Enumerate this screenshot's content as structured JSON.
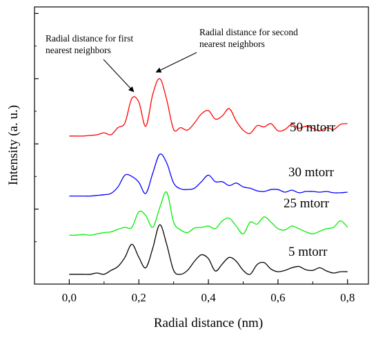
{
  "chart_data": {
    "type": "line",
    "xlabel": "Radial distance (nm)",
    "ylabel": "Intensity (a. u.)",
    "xlim": [
      -0.1,
      0.86
    ],
    "ylim": [
      -0.15,
      4.1
    ],
    "x_ticks": [
      0.0,
      0.2,
      0.4,
      0.6,
      0.8
    ],
    "x_tick_labels": [
      "0,0",
      "0,2",
      "0,4",
      "0,6",
      "0,8"
    ],
    "y_tick_labels_shown": false,
    "grid": false,
    "annotations": [
      {
        "text_lines": [
          "Radial distance for first",
          "nearest neighbors"
        ],
        "arrow_to": [
          0.185,
          2.8
        ]
      },
      {
        "text_lines": [
          "Radial distance for second",
          "nearest neighbors"
        ],
        "arrow_to": [
          0.25,
          3.1
        ]
      }
    ],
    "x": [
      0.0,
      0.02,
      0.04,
      0.06,
      0.08,
      0.1,
      0.12,
      0.14,
      0.16,
      0.18,
      0.2,
      0.22,
      0.24,
      0.26,
      0.28,
      0.3,
      0.32,
      0.34,
      0.36,
      0.38,
      0.4,
      0.42,
      0.44,
      0.46,
      0.48,
      0.5,
      0.52,
      0.54,
      0.56,
      0.58,
      0.6,
      0.62,
      0.64,
      0.66,
      0.68,
      0.7,
      0.72,
      0.74,
      0.76,
      0.78,
      0.8
    ],
    "series": [
      {
        "name": "50 mtorr",
        "color": "#ff0000",
        "values": [
          2.12,
          2.12,
          2.12,
          2.13,
          2.14,
          2.17,
          2.14,
          2.25,
          2.32,
          2.7,
          2.64,
          2.27,
          2.76,
          3.0,
          2.68,
          2.22,
          2.25,
          2.21,
          2.32,
          2.46,
          2.51,
          2.38,
          2.43,
          2.54,
          2.35,
          2.21,
          2.16,
          2.28,
          2.26,
          2.31,
          2.2,
          2.22,
          2.3,
          2.24,
          2.27,
          2.24,
          2.2,
          2.25,
          2.22,
          2.3,
          2.31
        ]
      },
      {
        "name": "30 mtorr",
        "color": "#0000ff",
        "values": [
          1.2,
          1.2,
          1.2,
          1.2,
          1.21,
          1.22,
          1.24,
          1.34,
          1.52,
          1.5,
          1.41,
          1.24,
          1.55,
          1.84,
          1.71,
          1.4,
          1.31,
          1.3,
          1.32,
          1.42,
          1.52,
          1.42,
          1.42,
          1.36,
          1.4,
          1.34,
          1.32,
          1.28,
          1.27,
          1.3,
          1.3,
          1.26,
          1.29,
          1.25,
          1.27,
          1.27,
          1.26,
          1.27,
          1.25,
          1.25,
          1.26
        ]
      },
      {
        "name": "25 mtorr",
        "color": "#00ee00",
        "values": [
          0.6,
          0.6,
          0.61,
          0.6,
          0.62,
          0.64,
          0.65,
          0.69,
          0.72,
          0.72,
          0.96,
          0.9,
          0.72,
          1.02,
          1.26,
          0.8,
          0.68,
          0.64,
          0.71,
          0.72,
          0.74,
          0.7,
          0.82,
          0.86,
          0.74,
          0.62,
          0.8,
          0.77,
          0.88,
          0.8,
          0.7,
          0.68,
          0.74,
          0.7,
          0.65,
          0.62,
          0.66,
          0.7,
          0.72,
          0.82,
          0.72
        ]
      },
      {
        "name": "5 mtorr",
        "color": "#000000",
        "values": [
          0.0,
          0.0,
          0.0,
          0.0,
          0.02,
          0.0,
          0.06,
          0.12,
          0.26,
          0.46,
          0.26,
          0.1,
          0.4,
          0.76,
          0.46,
          0.06,
          0.0,
          0.06,
          0.2,
          0.3,
          0.24,
          0.05,
          0.16,
          0.26,
          0.2,
          0.06,
          0.0,
          0.15,
          0.18,
          0.08,
          0.04,
          0.06,
          0.1,
          0.12,
          0.07,
          0.06,
          0.1,
          0.05,
          0.02,
          0.04,
          0.04
        ]
      }
    ]
  }
}
